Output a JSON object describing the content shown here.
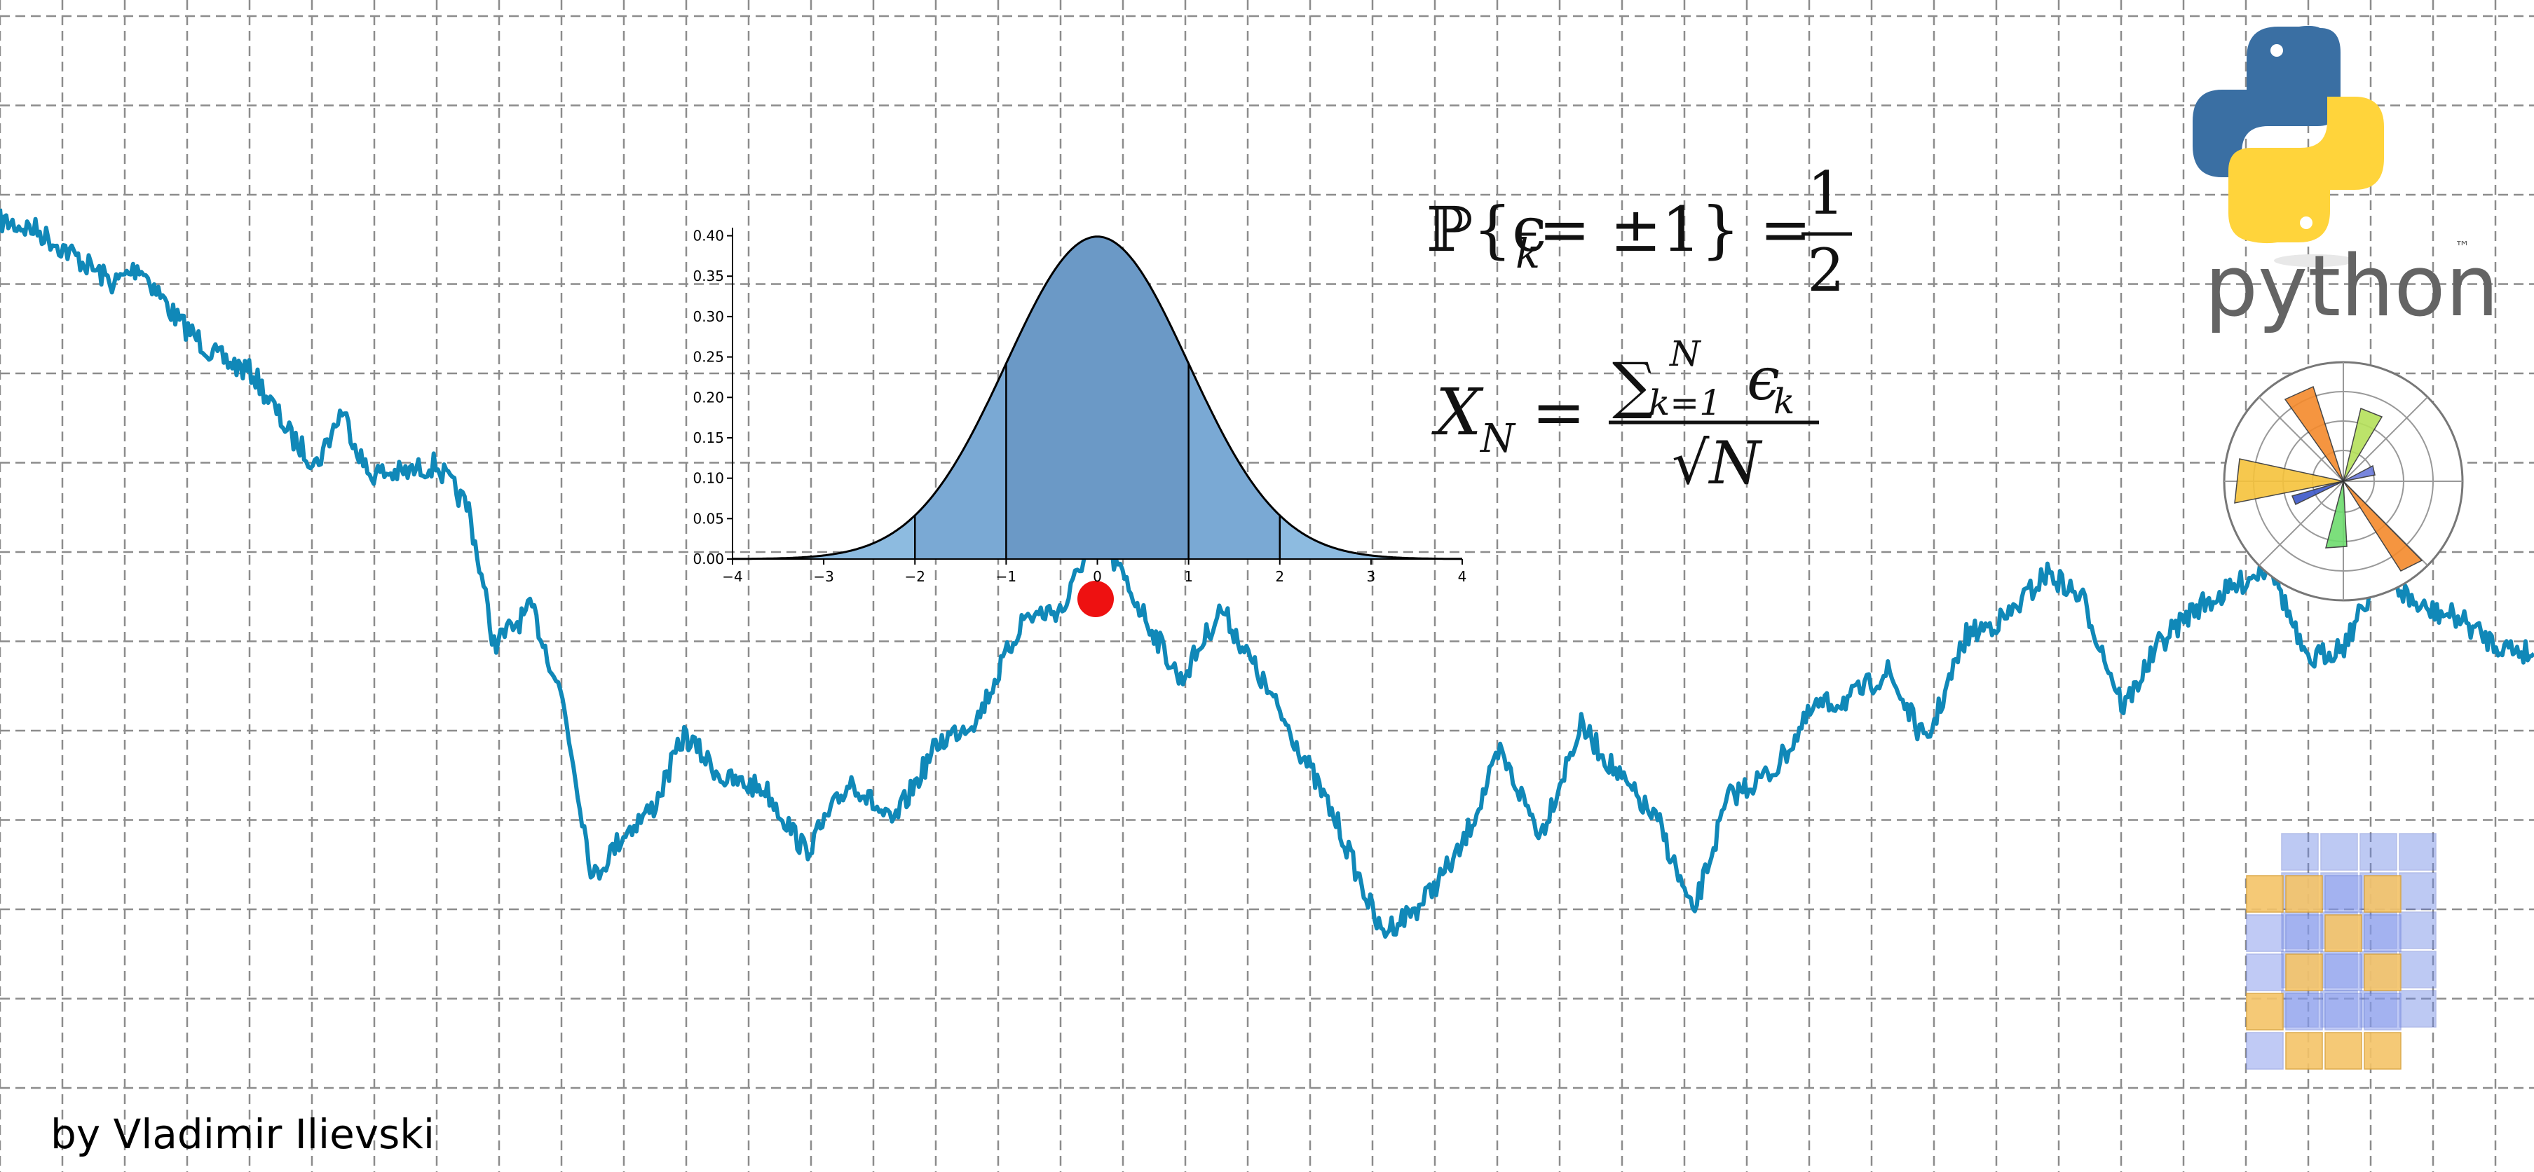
{
  "credit": "by Vladimir Ilievski",
  "colors": {
    "walk": "#1088b8",
    "marker": "#ee1111",
    "bell_outer": "#8dbbe0",
    "bell_mid": "#7aa9d4",
    "bell_inner": "#6b99c6",
    "grid": "#8c8c8c",
    "python_blue": "#3a6fa3",
    "python_yellow": "#ffd43b",
    "python_text": "#646464"
  },
  "formulas": {
    "f1": {
      "lhs": "ℙ{ϵ",
      "sub": "k",
      "mid": " = ±1} =",
      "num": "1",
      "den": "2"
    },
    "f2": {
      "lhs": "X",
      "lhs_sub": "N",
      "eq": "=",
      "sum": "∑",
      "sum_sub": "k=1",
      "sum_sup": "N",
      "term": "ϵ",
      "term_sub": "k",
      "den": "√N"
    }
  },
  "logos": {
    "python_text": "python",
    "tm": "™",
    "python_icon": "python-logo",
    "polar_icon": "matplotlib-logo",
    "cube_icon": "numpy-logo"
  },
  "chart_data": [
    {
      "type": "area",
      "x": [
        -4,
        -3.5,
        -3,
        -2.5,
        -2,
        -1.5,
        -1,
        -0.5,
        0,
        0.5,
        1,
        1.5,
        2,
        2.5,
        3,
        3.5,
        4
      ],
      "y": [
        0.0001,
        0.0009,
        0.0044,
        0.0175,
        0.054,
        0.1295,
        0.242,
        0.3521,
        0.3989,
        0.3521,
        0.242,
        0.1295,
        0.054,
        0.0175,
        0.0044,
        0.0009,
        0.0001
      ],
      "xlim": [
        -4,
        4
      ],
      "ylim": [
        0,
        0.41
      ],
      "xticks": [
        "−4",
        "−3",
        "−2",
        "−1",
        "0",
        "1",
        "2",
        "3",
        "4"
      ],
      "yticks": [
        "0.00",
        "0.05",
        "0.10",
        "0.15",
        "0.20",
        "0.25",
        "0.30",
        "0.35",
        "0.40"
      ],
      "shaded_bands": [
        [
          -1,
          1
        ],
        [
          -2,
          2
        ],
        [
          -4,
          4
        ]
      ],
      "grid": false
    },
    {
      "type": "line",
      "grid": true,
      "marker": {
        "x": 0.432,
        "y": 0.4
      },
      "series": [
        {
          "x": [
            0,
            0.014,
            0.03,
            0.045,
            0.055,
            0.07,
            0.085,
            0.1,
            0.115,
            0.125,
            0.135,
            0.145,
            0.16,
            0.172,
            0.185,
            0.195,
            0.21,
            0.222,
            0.234,
            0.246,
            0.258,
            0.27,
            0.286,
            0.302,
            0.318,
            0.336,
            0.352,
            0.37,
            0.386,
            0.404,
            0.42,
            0.432,
            0.448,
            0.466,
            0.482,
            0.496,
            0.51,
            0.528,
            0.545,
            0.56,
            0.576,
            0.592,
            0.608,
            0.624,
            0.64,
            0.655,
            0.668,
            0.682,
            0.7,
            0.716,
            0.73,
            0.745,
            0.76,
            0.776,
            0.792,
            0.808,
            0.822,
            0.838,
            0.852,
            0.866,
            0.88,
            0.896,
            0.91,
            0.925,
            0.94,
            0.955,
            0.97,
            0.985,
            1.0
          ],
          "y": [
            1.0,
            0.99,
            0.96,
            0.93,
            0.95,
            0.89,
            0.85,
            0.83,
            0.76,
            0.73,
            0.79,
            0.72,
            0.72,
            0.73,
            0.68,
            0.53,
            0.57,
            0.47,
            0.27,
            0.32,
            0.35,
            0.43,
            0.38,
            0.37,
            0.3,
            0.38,
            0.33,
            0.42,
            0.45,
            0.56,
            0.57,
            0.66,
            0.58,
            0.49,
            0.57,
            0.5,
            0.43,
            0.33,
            0.21,
            0.24,
            0.3,
            0.41,
            0.32,
            0.44,
            0.38,
            0.33,
            0.23,
            0.36,
            0.39,
            0.46,
            0.47,
            0.5,
            0.42,
            0.54,
            0.56,
            0.61,
            0.58,
            0.46,
            0.53,
            0.57,
            0.59,
            0.62,
            0.51,
            0.53,
            0.61,
            0.57,
            0.56,
            0.53,
            0.52
          ]
        }
      ]
    }
  ]
}
